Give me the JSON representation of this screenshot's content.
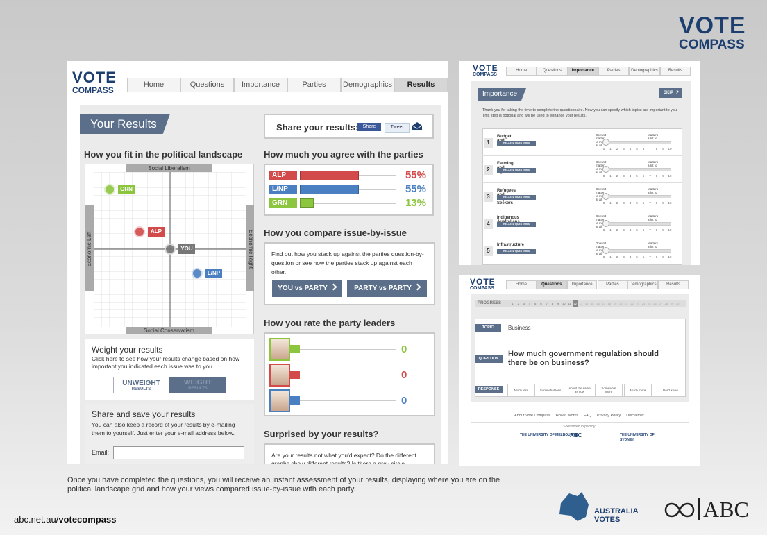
{
  "logo": {
    "top": "VOTE",
    "bottom": "COMPASS"
  },
  "nav": [
    "Home",
    "Questions",
    "Importance",
    "Parties",
    "Demographics",
    "Results"
  ],
  "results": {
    "title": "Your Results",
    "share_label": "Share your results:",
    "share_fb": "Share",
    "share_tw": "Tweet",
    "landscape": {
      "heading": "How you fit in the political landscape",
      "top": "Social Liberalism",
      "bottom": "Social Conservatism",
      "left": "Economic Left",
      "right": "Economic Right",
      "points": [
        "GRN",
        "ALP",
        "YOU",
        "L/NP"
      ]
    },
    "agree": {
      "heading": "How much you agree with the parties",
      "parties": [
        "ALP",
        "L/NP",
        "GRN"
      ],
      "values": [
        55,
        55,
        13
      ],
      "value_labels": [
        "55%",
        "55%",
        "13%"
      ],
      "colors": [
        "#d24a4a",
        "#4a7fc1",
        "#8cc63f"
      ]
    },
    "compare": {
      "heading": "How you compare issue-by-issue",
      "text": "Find out how you stack up against the parties question-by-question or see how the parties stack up against each other.",
      "buttons": [
        "YOU vs PARTY",
        "PARTY vs PARTY"
      ]
    },
    "leaders": {
      "heading": "How you rate the party leaders",
      "values": [
        0,
        0,
        0
      ],
      "colors": [
        "#8cc63f",
        "#d24a4a",
        "#4a7fc1"
      ]
    },
    "weight": {
      "heading": "Weight your results",
      "text": "Click here to see how your results change based on how important you indicated each issue was to you.",
      "unweight": "UNWEIGHT",
      "unweight_sub": "RESULTS",
      "weight": "WEIGHT",
      "weight_sub": "RESULTS"
    },
    "save": {
      "heading": "Share and save your results",
      "text": "You can also keep a record of your results by e-mailing them to yourself. Just enter your e-mail address below.",
      "email": "Email:"
    },
    "surprised": {
      "heading": "Surprised by your results?",
      "text": "Are your results not what you'd expect? Do the different graphs show different results? Is there a grey circle"
    }
  },
  "importance": {
    "title": "Importance",
    "skip": "SKIP",
    "intro": "Thank you for taking the time to complete the questionnaire. Now you can specify which topics are important to you. This step is optional and will be used to enhance your results.",
    "low": "Doesn't matter to me at all",
    "high": "Matters a lot to me",
    "related": "RELATED QUESTIONS",
    "scale": [
      0,
      1,
      2,
      3,
      4,
      5,
      6,
      7,
      8,
      9,
      10
    ],
    "numbers": [
      1,
      2,
      3,
      4,
      5
    ],
    "items": [
      "Budget and Deficit",
      "Farming and Agriculture",
      "Refugees and Asylum Seekers",
      "Indigenous Australians",
      "Infrastructure"
    ]
  },
  "question": {
    "progress_label": "PROGRESS",
    "progress": [
      1,
      2,
      3,
      4,
      5,
      6,
      7,
      8,
      9,
      10,
      11,
      12,
      13,
      14,
      15,
      16,
      17,
      18,
      19,
      20,
      21,
      22,
      23,
      24,
      25,
      26,
      27,
      28,
      29,
      30
    ],
    "current": 12,
    "topic_label": "TOPIC",
    "topic": "Business",
    "question_label": "QUESTION",
    "question": "How much government regulation should there be on business?",
    "response_label": "RESPONSE",
    "responses": [
      "Much less",
      "Somewhat less",
      "About the same as now",
      "Somewhat more",
      "Much more",
      "Don't know"
    ],
    "footer_links": [
      "About Vote Compass",
      "How it Works",
      "FAQ",
      "Privacy Policy",
      "Disclaimer"
    ],
    "sponsored": "Sponsored in part by",
    "sponsors": [
      "THE UNIVERSITY OF MELBOURNE",
      "ABC",
      "THE UNIVERSITY OF SYDNEY"
    ]
  },
  "caption": "Once you have completed the questions, you will receive an instant assessment of your results, displaying where you are on the political landscape grid and how your views compared issue-by-issue with each party.",
  "url": {
    "domain": "abc.net.au/",
    "path": "votecompass"
  },
  "australia_votes": [
    "AUSTRALIA",
    "VOTES"
  ],
  "abc": "ABC"
}
